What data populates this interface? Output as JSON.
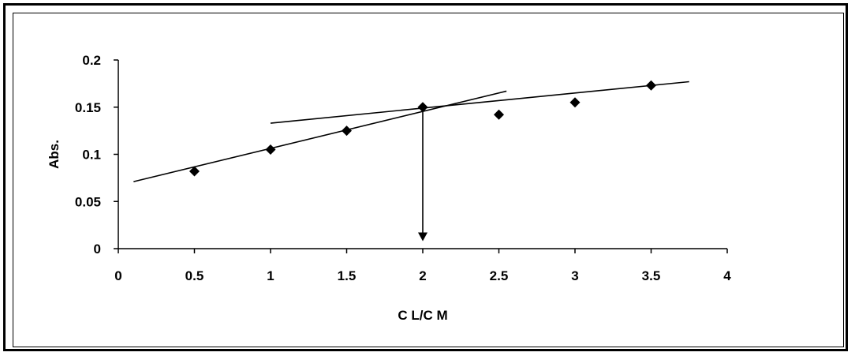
{
  "chart_data": {
    "type": "scatter",
    "xlabel": "C L/C M",
    "ylabel": "Abs.",
    "xlim": [
      0,
      4
    ],
    "ylim": [
      0,
      0.2
    ],
    "x_ticks": [
      "0",
      "0.5",
      "1",
      "1.5",
      "2",
      "2.5",
      "3",
      "3.5",
      "4"
    ],
    "y_ticks": [
      "0",
      "0.05",
      "0.1",
      "0.15",
      "0.2"
    ],
    "grid": false,
    "legend": "none",
    "series": [
      {
        "marker": "diamond",
        "x": [
          0.5,
          1,
          1.5,
          2,
          2.5,
          3,
          3.5
        ],
        "y": [
          0.082,
          0.105,
          0.125,
          0.15,
          0.142,
          0.155,
          0.173
        ]
      }
    ],
    "trend_lines": [
      {
        "from": [
          0.1,
          0.071
        ],
        "to": [
          2.55,
          0.167
        ]
      },
      {
        "from": [
          1.0,
          0.133
        ],
        "to": [
          3.75,
          0.177
        ]
      }
    ],
    "arrow": {
      "x": 2,
      "from_y": 0.15,
      "to_y": 0.008
    },
    "colors": {
      "marker": "#000000",
      "line": "#000000",
      "background": "#ffffff"
    }
  }
}
